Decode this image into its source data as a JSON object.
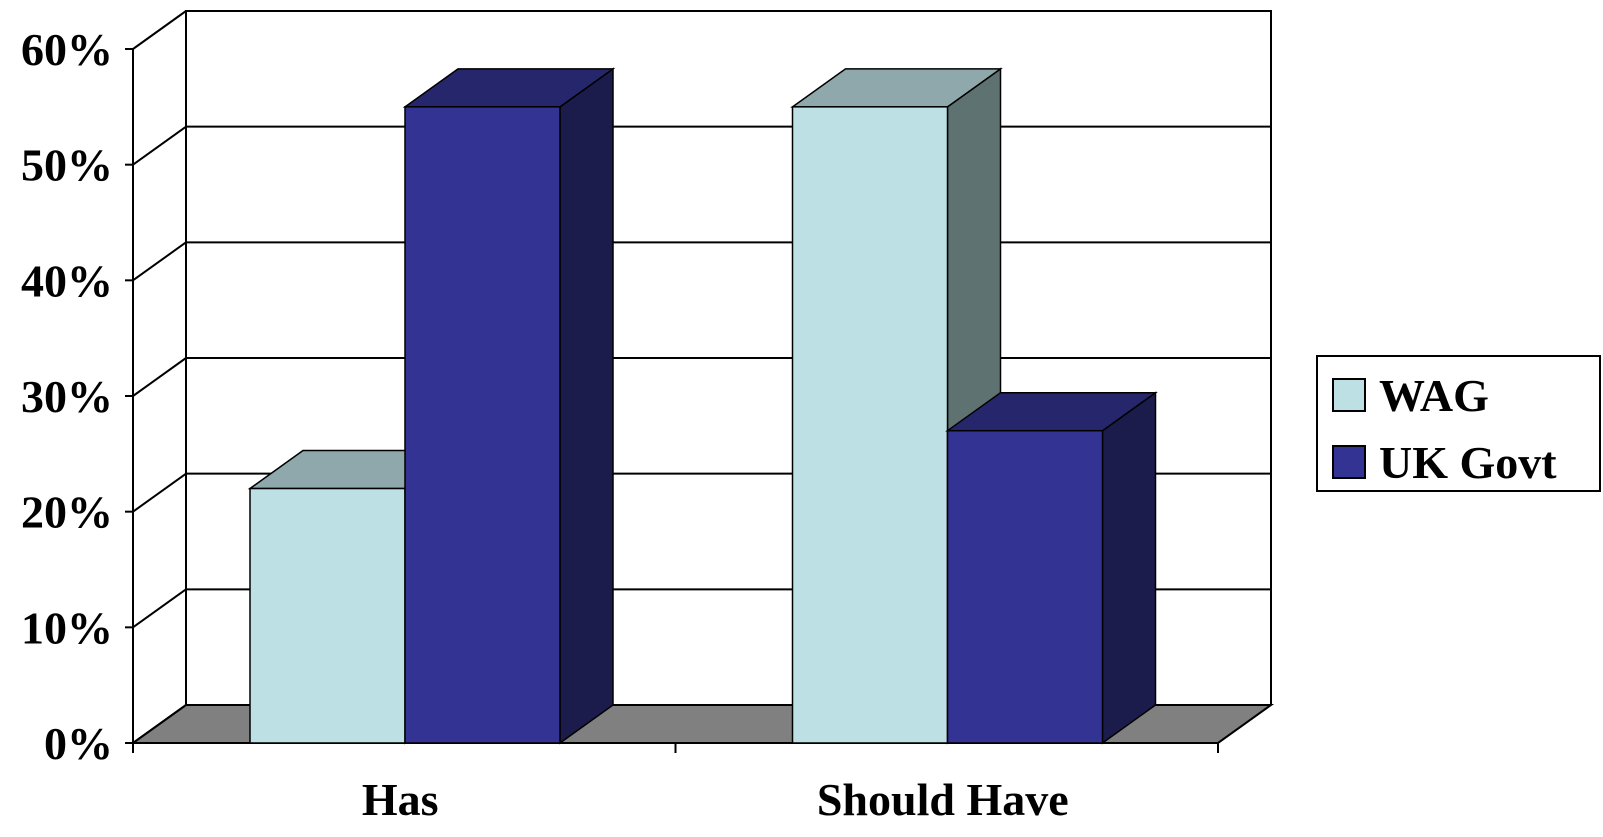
{
  "chart_data": {
    "type": "bar",
    "categories": [
      "Has",
      "Should Have"
    ],
    "series": [
      {
        "name": "WAG",
        "values": [
          22,
          55
        ],
        "color": "#BCE0E4",
        "top_color": "#8FA8AB",
        "side_color": "#5F7272"
      },
      {
        "name": "UK Govt",
        "values": [
          55,
          27
        ],
        "color": "#333394",
        "top_color": "#26266C",
        "side_color": "#1C1C4C"
      }
    ],
    "ylim": [
      0,
      60
    ],
    "yticks": [
      "0%",
      "10%",
      "20%",
      "30%",
      "40%",
      "50%",
      "60%"
    ],
    "ytick_values": [
      0,
      10,
      20,
      30,
      40,
      50,
      60
    ],
    "grid": true,
    "legend": "right",
    "floor_color": "#808080"
  }
}
